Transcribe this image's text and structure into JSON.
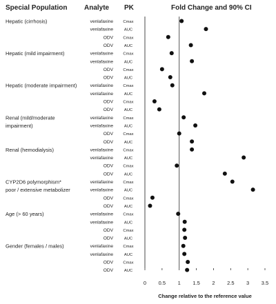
{
  "headers": {
    "population": "Special Population",
    "analyte": "Analyte",
    "pk": "PK",
    "effect": "Fold Change and 90% CI"
  },
  "chart_data": {
    "type": "scatter",
    "xlabel": "Change relative to the reference value",
    "xlim": [
      0,
      3.5
    ],
    "xticks": [
      "0",
      "0.5",
      "1",
      "1.5",
      "2",
      "2.5",
      "3",
      "3.5"
    ],
    "reference_line": 1,
    "groups": [
      {
        "label": [
          "Hepatic (cirrhosis)"
        ],
        "rows": [
          {
            "analyte": "venlafaxine",
            "pk": "Cmax",
            "value": 1.07
          },
          {
            "analyte": "venlafaxine",
            "pk": "AUC",
            "value": 1.78
          },
          {
            "analyte": "ODV",
            "pk": "Cmax",
            "value": 0.68
          },
          {
            "analyte": "ODV",
            "pk": "AUC",
            "value": 1.34
          }
        ]
      },
      {
        "label": [
          "Hepatic (mild impairment)"
        ],
        "rows": [
          {
            "analyte": "venlafaxine",
            "pk": "Cmax",
            "value": 0.78
          },
          {
            "analyte": "venlafaxine",
            "pk": "AUC",
            "value": 1.37
          },
          {
            "analyte": "ODV",
            "pk": "Cmax",
            "value": 0.5
          },
          {
            "analyte": "ODV",
            "pk": "AUC",
            "value": 0.74
          }
        ]
      },
      {
        "label": [
          "Hepatic (moderate impairment)"
        ],
        "rows": [
          {
            "analyte": "venlafaxine",
            "pk": "Cmax",
            "value": 0.8
          },
          {
            "analyte": "venlafaxine",
            "pk": "AUC",
            "value": 1.73
          },
          {
            "analyte": "ODV",
            "pk": "Cmax",
            "value": 0.28
          },
          {
            "analyte": "ODV",
            "pk": "AUC",
            "value": 0.42
          }
        ]
      },
      {
        "label": [
          "Renal (mild/moderate",
          "impairment)"
        ],
        "rows": [
          {
            "analyte": "venlafaxine",
            "pk": "Cmax",
            "value": 1.13
          },
          {
            "analyte": "venlafaxine",
            "pk": "AUC",
            "value": 1.47
          },
          {
            "analyte": "ODV",
            "pk": "Cmax",
            "value": 1.0
          },
          {
            "analyte": "ODV",
            "pk": "AUC",
            "value": 1.37
          }
        ]
      },
      {
        "label": [
          "Renal (hemodialysis)"
        ],
        "rows": [
          {
            "analyte": "venlafaxine",
            "pk": "Cmax",
            "value": 1.37
          },
          {
            "analyte": "venlafaxine",
            "pk": "AUC",
            "value": 2.88
          },
          {
            "analyte": "ODV",
            "pk": "Cmax",
            "value": 0.93
          },
          {
            "analyte": "ODV",
            "pk": "AUC",
            "value": 2.33
          }
        ]
      },
      {
        "label": [
          "CYP2D6 polymorphism*",
          "poor / extensive metabolizer"
        ],
        "rows": [
          {
            "analyte": "venlafaxine",
            "pk": "Cmax",
            "value": 2.55
          },
          {
            "analyte": "venlafaxine",
            "pk": "AUC",
            "value": 3.15
          },
          {
            "analyte": "ODV",
            "pk": "Cmax",
            "value": 0.22
          },
          {
            "analyte": "ODV",
            "pk": "AUC",
            "value": 0.15
          }
        ]
      },
      {
        "label": [
          "Age (> 60 years)"
        ],
        "rows": [
          {
            "analyte": "venlafaxine",
            "pk": "Cmax",
            "value": 0.97
          },
          {
            "analyte": "venlafaxine",
            "pk": "AUC",
            "value": 1.16
          },
          {
            "analyte": "ODV",
            "pk": "Cmax",
            "value": 1.15
          },
          {
            "analyte": "ODV",
            "pk": "AUC",
            "value": 1.17
          }
        ]
      },
      {
        "label": [
          "Gender (females / males)"
        ],
        "rows": [
          {
            "analyte": "venlafaxine",
            "pk": "Cmax",
            "value": 1.12
          },
          {
            "analyte": "venlafaxine",
            "pk": "AUC",
            "value": 1.15
          },
          {
            "analyte": "ODV",
            "pk": "Cmax",
            "value": 1.25
          },
          {
            "analyte": "ODV",
            "pk": "AUC",
            "value": 1.23
          }
        ]
      }
    ]
  }
}
